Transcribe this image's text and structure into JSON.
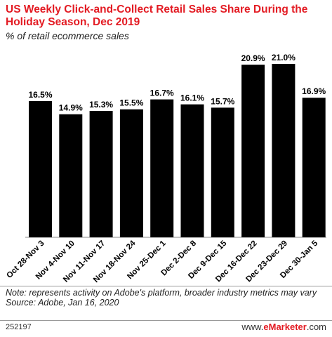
{
  "title": "US Weekly Click-and-Collect Retail Sales Share During the Holiday Season, Dec 2019",
  "subtitle": "% of retail ecommerce sales",
  "note": "Note: represents activity on Adobe's platform, broader industry metrics may vary",
  "source": "Source: Adobe, Jan 16, 2020",
  "chart_id": "252197",
  "brand": {
    "prefix": "www.",
    "name": "eMarketer",
    "suffix": ".com"
  },
  "chart_data": {
    "type": "bar",
    "title": "US Weekly Click-and-Collect Retail Sales Share During the Holiday Season, Dec 2019",
    "ylabel": "% of retail ecommerce sales",
    "categories": [
      "Oct 28-Nov 3",
      "Nov 4-Nov 10",
      "Nov 11-Nov 17",
      "Nov 18-Nov 24",
      "Nov 25-Dec 1",
      "Dec 2-Dec 8",
      "Dec 9-Dec 15",
      "Dec 16-Dec 22",
      "Dec 23-Dec 29",
      "Dec 30-Jan 5"
    ],
    "values": [
      16.5,
      14.9,
      15.3,
      15.5,
      16.7,
      16.1,
      15.7,
      20.9,
      21.0,
      16.9
    ],
    "data_labels": [
      "16.5%",
      "14.9%",
      "15.3%",
      "15.5%",
      "16.7%",
      "16.1%",
      "15.7%",
      "20.9%",
      "21.0%",
      "16.9%"
    ],
    "ylim": [
      0,
      21.0
    ],
    "bar_color": "#000000",
    "grid": false
  }
}
